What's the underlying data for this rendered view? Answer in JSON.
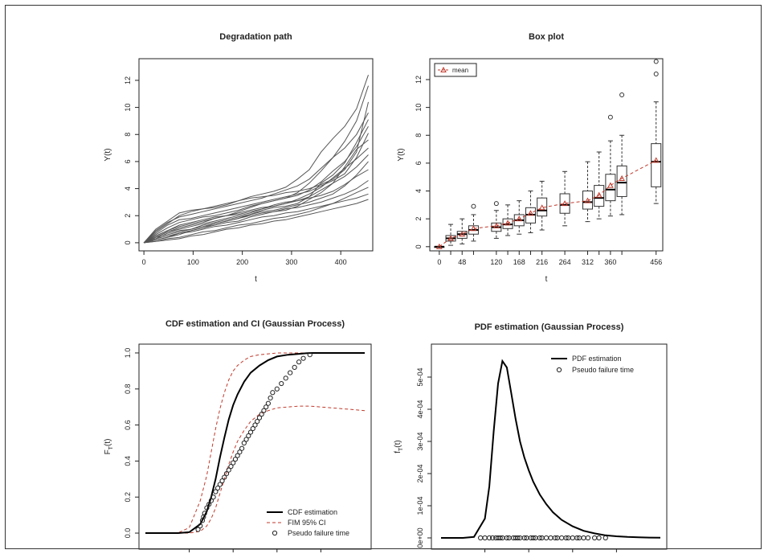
{
  "chart_data": [
    {
      "type": "line",
      "title": "Degradation path",
      "xlabel": "t",
      "ylabel": "Y(t)",
      "xlim": [
        0,
        460
      ],
      "ylim": [
        0,
        13.5
      ],
      "xticks": [
        0,
        100,
        200,
        300,
        400
      ],
      "yticks": [
        0,
        2,
        4,
        6,
        8,
        10,
        12
      ],
      "legend": "none",
      "x": [
        0,
        24,
        48,
        72,
        96,
        120,
        144,
        168,
        192,
        216,
        240,
        264,
        288,
        312,
        336,
        360,
        384,
        408,
        432,
        456
      ],
      "series": [
        {
          "values": [
            0,
            0.4,
            0.8,
            1.1,
            1.3,
            1.5,
            1.8,
            2.0,
            2.3,
            2.6,
            2.9,
            3.1,
            3.3,
            3.7,
            4.4,
            5.3,
            6.3,
            7.5,
            9.0,
            11.6
          ]
        },
        {
          "values": [
            0,
            0.8,
            1.4,
            2.0,
            2.3,
            2.5,
            2.6,
            2.8,
            3.1,
            3.4,
            3.6,
            3.8,
            4.1,
            4.7,
            5.4,
            6.7,
            7.7,
            8.6,
            9.9,
            12.4
          ]
        },
        {
          "values": [
            0,
            0.2,
            0.4,
            0.6,
            0.9,
            1.1,
            1.3,
            1.5,
            1.6,
            1.9,
            2.1,
            2.3,
            2.4,
            2.7,
            3.2,
            3.7,
            4.4,
            4.9,
            5.6,
            6.5
          ]
        },
        {
          "values": [
            0,
            0.3,
            0.7,
            0.9,
            1.0,
            1.2,
            1.4,
            1.6,
            1.8,
            2.1,
            2.4,
            2.6,
            2.7,
            2.9,
            3.4,
            4.4,
            5.0,
            5.9,
            7.4,
            9.1
          ]
        },
        {
          "values": [
            0,
            0.7,
            1.3,
            1.7,
            1.8,
            2.0,
            2.2,
            2.4,
            2.6,
            2.8,
            3.0,
            3.2,
            3.4,
            3.6,
            3.8,
            4.2,
            4.6,
            5.1,
            6.3,
            8.1
          ]
        },
        {
          "values": [
            0,
            0.1,
            0.3,
            0.4,
            0.6,
            0.8,
            0.9,
            1.1,
            1.3,
            1.4,
            1.6,
            1.8,
            1.9,
            2.1,
            2.3,
            2.6,
            2.9,
            3.1,
            3.3,
            3.6
          ]
        },
        {
          "values": [
            0,
            0.5,
            0.9,
            1.3,
            1.5,
            1.7,
            1.9,
            2.0,
            2.2,
            2.4,
            2.6,
            2.7,
            2.9,
            3.1,
            3.4,
            3.9,
            4.4,
            5.6,
            6.9,
            7.6
          ]
        },
        {
          "values": [
            0,
            0.4,
            0.6,
            0.8,
            1.0,
            1.3,
            1.5,
            1.7,
            1.9,
            2.1,
            2.3,
            2.4,
            2.6,
            2.8,
            3.0,
            3.3,
            3.6,
            4.2,
            5.0,
            6.0
          ]
        },
        {
          "values": [
            0,
            1.0,
            1.6,
            2.2,
            2.4,
            2.5,
            2.7,
            2.9,
            3.1,
            3.3,
            3.4,
            3.5,
            3.7,
            3.8,
            4.0,
            4.3,
            4.7,
            5.4,
            6.7,
            10.4
          ]
        },
        {
          "values": [
            0,
            0.1,
            0.2,
            0.3,
            0.5,
            0.6,
            0.8,
            1.0,
            1.1,
            1.3,
            1.4,
            1.6,
            1.7,
            1.9,
            2.1,
            2.3,
            2.5,
            2.7,
            2.9,
            3.2
          ]
        },
        {
          "values": [
            0,
            0.6,
            1.1,
            1.5,
            1.7,
            1.9,
            2.0,
            2.2,
            2.4,
            2.7,
            2.9,
            3.1,
            3.3,
            3.5,
            3.9,
            4.5,
            5.3,
            6.0,
            7.1,
            8.6
          ]
        },
        {
          "values": [
            0,
            0.3,
            0.5,
            0.7,
            0.9,
            1.1,
            1.4,
            1.6,
            1.8,
            2.0,
            2.2,
            2.3,
            2.5,
            2.6,
            2.8,
            3.0,
            3.3,
            3.6,
            4.0,
            4.6
          ]
        },
        {
          "values": [
            0,
            0.5,
            0.9,
            1.2,
            1.4,
            1.6,
            1.8,
            2.0,
            2.1,
            2.3,
            2.5,
            2.7,
            2.9,
            3.2,
            3.6,
            4.1,
            4.8,
            5.5,
            6.2,
            7.0
          ]
        },
        {
          "values": [
            0,
            0.2,
            0.4,
            0.7,
            0.8,
            1.0,
            1.2,
            1.3,
            1.5,
            1.7,
            1.9,
            2.0,
            2.2,
            2.3,
            2.5,
            2.7,
            2.9,
            3.3,
            3.7,
            4.1
          ]
        },
        {
          "values": [
            0,
            0.9,
            1.5,
            1.9,
            2.1,
            2.3,
            2.5,
            2.7,
            2.9,
            3.1,
            3.3,
            3.6,
            3.9,
            4.2,
            4.7,
            5.5,
            6.3,
            7.0,
            8.0,
            9.6
          ]
        },
        {
          "values": [
            0,
            0.4,
            0.8,
            1.0,
            1.2,
            1.4,
            1.6,
            1.8,
            2.0,
            2.2,
            2.5,
            2.8,
            3.0,
            3.1,
            3.3,
            3.5,
            3.8,
            4.3,
            4.9,
            5.4
          ]
        }
      ]
    },
    {
      "type": "box",
      "title": "Box plot",
      "xlabel": "t",
      "ylabel": "Y(t)",
      "ylim": [
        -0.3,
        13.5
      ],
      "yticks": [
        0,
        2,
        4,
        6,
        8,
        10,
        12
      ],
      "xtick_labels": [
        "0",
        "48",
        "120",
        "168",
        "216",
        "264",
        "312",
        "360",
        "456"
      ],
      "legend_label": "mean",
      "legend": "top-left",
      "mean_color": "#c0392b",
      "positions": [
        0,
        24,
        48,
        72,
        120,
        144,
        168,
        192,
        216,
        264,
        312,
        336,
        360,
        384,
        456
      ],
      "boxes": [
        {
          "min": 0,
          "q1": 0,
          "median": 0,
          "q3": 0,
          "max": 0,
          "mean": 0,
          "outliers": []
        },
        {
          "min": 0.1,
          "q1": 0.4,
          "median": 0.6,
          "q3": 0.8,
          "max": 1.6,
          "mean": 0.6,
          "outliers": []
        },
        {
          "min": 0.2,
          "q1": 0.6,
          "median": 0.9,
          "q3": 1.1,
          "max": 2.0,
          "mean": 0.9,
          "outliers": []
        },
        {
          "min": 0.4,
          "q1": 0.9,
          "median": 1.2,
          "q3": 1.5,
          "max": 2.3,
          "mean": 1.3,
          "outliers": [
            2.9
          ]
        },
        {
          "min": 0.6,
          "q1": 1.1,
          "median": 1.4,
          "q3": 1.7,
          "max": 2.6,
          "mean": 1.5,
          "outliers": [
            3.1
          ]
        },
        {
          "min": 0.8,
          "q1": 1.3,
          "median": 1.6,
          "q3": 2.0,
          "max": 3.0,
          "mean": 1.7,
          "outliers": []
        },
        {
          "min": 0.9,
          "q1": 1.5,
          "median": 1.9,
          "q3": 2.3,
          "max": 3.3,
          "mean": 2.0,
          "outliers": []
        },
        {
          "min": 1.0,
          "q1": 1.7,
          "median": 2.3,
          "q3": 2.8,
          "max": 4.0,
          "mean": 2.4,
          "outliers": []
        },
        {
          "min": 1.2,
          "q1": 2.2,
          "median": 2.6,
          "q3": 3.5,
          "max": 4.7,
          "mean": 2.8,
          "outliers": []
        },
        {
          "min": 1.5,
          "q1": 2.4,
          "median": 3.0,
          "q3": 3.8,
          "max": 5.4,
          "mean": 3.1,
          "outliers": []
        },
        {
          "min": 1.8,
          "q1": 2.7,
          "median": 3.2,
          "q3": 4.0,
          "max": 6.1,
          "mean": 3.3,
          "outliers": []
        },
        {
          "min": 2.0,
          "q1": 2.9,
          "median": 3.5,
          "q3": 4.4,
          "max": 6.8,
          "mean": 3.7,
          "outliers": []
        },
        {
          "min": 2.2,
          "q1": 3.3,
          "median": 4.1,
          "q3": 5.2,
          "max": 7.6,
          "mean": 4.4,
          "outliers": [
            9.3
          ]
        },
        {
          "min": 2.3,
          "q1": 3.6,
          "median": 4.6,
          "q3": 5.8,
          "max": 8.0,
          "mean": 4.9,
          "outliers": [
            10.9
          ]
        },
        {
          "min": 3.1,
          "q1": 4.3,
          "median": 6.1,
          "q3": 7.4,
          "max": 10.4,
          "mean": 6.2,
          "outliers": [
            12.4,
            13.3
          ]
        }
      ]
    },
    {
      "type": "line",
      "title": "CDF estimation and CI (Gaussian Process)",
      "ylabel": "F_T(t)",
      "yticks": [
        0.0,
        0.2,
        0.4,
        0.6,
        0.8,
        1.0
      ],
      "ytick_labels": [
        "0.0",
        "0.2",
        "0.4",
        "0.6",
        "0.8",
        "1.0"
      ],
      "legend": "bottom-right",
      "legend_entries": [
        "CDF estimation",
        "FIM 95% CI",
        "Pseudo failure time"
      ],
      "ci_color": "#c0392b",
      "x": [
        0.0,
        0.05,
        0.1,
        0.15,
        0.2,
        0.25,
        0.28,
        0.3,
        0.32,
        0.34,
        0.36,
        0.38,
        0.4,
        0.42,
        0.45,
        0.48,
        0.52,
        0.56,
        0.6,
        0.65,
        0.7,
        0.75,
        0.8,
        0.85,
        0.9,
        0.95,
        1.0
      ],
      "cdf": [
        0,
        0,
        0,
        0,
        0.005,
        0.05,
        0.12,
        0.2,
        0.3,
        0.42,
        0.53,
        0.63,
        0.71,
        0.77,
        0.84,
        0.89,
        0.93,
        0.96,
        0.98,
        0.99,
        0.995,
        1.0,
        1.0,
        1.0,
        1.0,
        1.0,
        1.0
      ],
      "ci_upper": [
        0,
        0,
        0,
        0.002,
        0.03,
        0.18,
        0.32,
        0.45,
        0.58,
        0.69,
        0.78,
        0.85,
        0.9,
        0.93,
        0.96,
        0.98,
        0.99,
        0.995,
        1.0,
        1.0,
        1.0,
        1.0,
        1.0,
        1.0,
        1.0,
        1.0,
        1.0
      ],
      "ci_lower": [
        0,
        0,
        0,
        0,
        0,
        0.01,
        0.04,
        0.08,
        0.14,
        0.22,
        0.3,
        0.38,
        0.45,
        0.51,
        0.57,
        0.62,
        0.66,
        0.68,
        0.695,
        0.7,
        0.705,
        0.705,
        0.7,
        0.695,
        0.69,
        0.685,
        0.68
      ],
      "pseudo_x": [
        0.24,
        0.25,
        0.26,
        0.265,
        0.27,
        0.28,
        0.29,
        0.3,
        0.31,
        0.32,
        0.33,
        0.34,
        0.35,
        0.36,
        0.37,
        0.38,
        0.39,
        0.4,
        0.41,
        0.42,
        0.43,
        0.44,
        0.45,
        0.46,
        0.47,
        0.48,
        0.49,
        0.5,
        0.51,
        0.52,
        0.53,
        0.54,
        0.55,
        0.56,
        0.57,
        0.58,
        0.6,
        0.62,
        0.64,
        0.66,
        0.68,
        0.7,
        0.72,
        0.75
      ],
      "pseudo_y": [
        0.02,
        0.04,
        0.07,
        0.09,
        0.11,
        0.14,
        0.16,
        0.18,
        0.2,
        0.23,
        0.25,
        0.27,
        0.29,
        0.31,
        0.33,
        0.35,
        0.37,
        0.39,
        0.41,
        0.43,
        0.45,
        0.47,
        0.5,
        0.52,
        0.54,
        0.56,
        0.58,
        0.6,
        0.62,
        0.64,
        0.66,
        0.68,
        0.7,
        0.72,
        0.75,
        0.78,
        0.8,
        0.83,
        0.86,
        0.89,
        0.92,
        0.95,
        0.97,
        0.99
      ]
    },
    {
      "type": "line",
      "title": "PDF estimation (Gaussian Process)",
      "ylabel": "f_T(t)",
      "ylim": [
        0,
        0.00057
      ],
      "yticks": [
        0,
        0.0001,
        0.0002,
        0.0003,
        0.0004,
        0.0005
      ],
      "ytick_labels": [
        "0e+00",
        "1e-04",
        "2e-04",
        "3e-04",
        "4e-04",
        "5e-04"
      ],
      "legend": "top-right",
      "legend_entries": [
        "PDF estimation",
        "Pseudo failure time"
      ],
      "x": [
        0.0,
        0.05,
        0.1,
        0.15,
        0.2,
        0.22,
        0.24,
        0.26,
        0.28,
        0.3,
        0.32,
        0.34,
        0.36,
        0.38,
        0.4,
        0.42,
        0.45,
        0.48,
        0.51,
        0.55,
        0.6,
        0.65,
        0.7,
        0.75,
        0.8,
        0.85,
        0.9,
        0.95,
        1.0
      ],
      "pdf": [
        0,
        0,
        0,
        3e-06,
        6e-05,
        0.00016,
        0.00033,
        0.00048,
        0.00055,
        0.00053,
        0.00045,
        0.00037,
        0.0003,
        0.00025,
        0.00021,
        0.000175,
        0.000135,
        0.000105,
        8e-05,
        5.6e-05,
        3.6e-05,
        2.2e-05,
        1.4e-05,
        8e-06,
        5e-06,
        3e-06,
        2e-06,
        1e-06,
        5e-07
      ],
      "pseudo_x": [
        0.18,
        0.2,
        0.22,
        0.235,
        0.25,
        0.26,
        0.27,
        0.28,
        0.3,
        0.31,
        0.33,
        0.34,
        0.35,
        0.36,
        0.38,
        0.39,
        0.41,
        0.42,
        0.43,
        0.45,
        0.46,
        0.48,
        0.5,
        0.52,
        0.53,
        0.55,
        0.57,
        0.58,
        0.6,
        0.62,
        0.63,
        0.65,
        0.67,
        0.7,
        0.72,
        0.75
      ]
    }
  ]
}
